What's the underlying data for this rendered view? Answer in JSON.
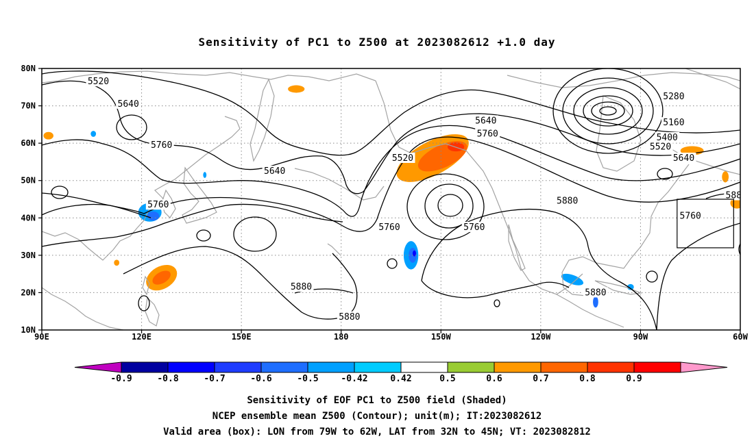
{
  "title": "Sensitivity of PC1 to Z500 at 2023082612 +1.0 day",
  "map": {
    "lon_range": [
      90,
      300
    ],
    "lat_range": [
      10,
      80
    ],
    "x_ticks": [
      "90E",
      "120E",
      "150E",
      "180",
      "150W",
      "120W",
      "90W",
      "60W"
    ],
    "y_ticks": [
      "80N",
      "70N",
      "60N",
      "50N",
      "40N",
      "30N",
      "20N",
      "10N"
    ],
    "grid": "dotted",
    "coastline_color": "#a0a0a0",
    "contour_color": "#000000",
    "valid_area_box": {
      "lon_w": 281,
      "lon_e": 298,
      "lat_s": 32,
      "lat_n": 45
    }
  },
  "contour_labels": [
    {
      "text": "5520",
      "lon": 107,
      "lat": 76.5
    },
    {
      "text": "5640",
      "lon": 116,
      "lat": 70.5
    },
    {
      "text": "5760",
      "lon": 126,
      "lat": 59.5
    },
    {
      "text": "5640",
      "lon": 160,
      "lat": 52.5
    },
    {
      "text": "5760",
      "lon": 125,
      "lat": 43.5
    },
    {
      "text": "5520",
      "lon": 198.5,
      "lat": 56
    },
    {
      "text": "5640",
      "lon": 223.5,
      "lat": 66
    },
    {
      "text": "5760",
      "lon": 224,
      "lat": 62.5
    },
    {
      "text": "5760",
      "lon": 194.5,
      "lat": 37.5
    },
    {
      "text": "5760",
      "lon": 220,
      "lat": 37.5
    },
    {
      "text": "5880",
      "lon": 248,
      "lat": 44.5
    },
    {
      "text": "5880",
      "lon": 168,
      "lat": 21.5
    },
    {
      "text": "5880",
      "lon": 182.5,
      "lat": 13.5
    },
    {
      "text": "5880",
      "lon": 256.5,
      "lat": 20
    },
    {
      "text": "5280",
      "lon": 280,
      "lat": 72.5
    },
    {
      "text": "5160",
      "lon": 280,
      "lat": 65.5
    },
    {
      "text": "5400",
      "lon": 278,
      "lat": 61.5
    },
    {
      "text": "5520",
      "lon": 276,
      "lat": 59
    },
    {
      "text": "5640",
      "lon": 283,
      "lat": 56
    },
    {
      "text": "5760",
      "lon": 285,
      "lat": 40.5
    },
    {
      "text": "588",
      "lon": 298,
      "lat": 46
    }
  ],
  "shaded_patches": [
    {
      "level": "0.5",
      "lon": 207.5,
      "lat": 56,
      "rlon": 12.0,
      "rlat": 4.5,
      "rot": -28
    },
    {
      "level": "0.6",
      "lon": 210.5,
      "lat": 56.5,
      "rlon": 8.0,
      "rlat": 3.0,
      "rot": -25
    },
    {
      "level": "0.7",
      "lon": 214.5,
      "lat": 59,
      "rlon": 2.5,
      "rlat": 1.2,
      "rot": 0
    },
    {
      "level": "0.5",
      "lon": 126,
      "lat": 24,
      "rlon": 5.0,
      "rlat": 3.0,
      "rot": -30
    },
    {
      "level": "0.6",
      "lon": 126,
      "lat": 24,
      "rlon": 3.0,
      "rlat": 1.5,
      "rot": -30
    },
    {
      "level": "0.5",
      "lon": 166.5,
      "lat": 74.5,
      "rlon": 2.5,
      "rlat": 1.0,
      "rot": 0
    },
    {
      "level": "0.5",
      "lon": 92,
      "lat": 62,
      "rlon": 1.5,
      "rlat": 1.0,
      "rot": 0
    },
    {
      "level": "0.5",
      "lon": 285.5,
      "lat": 58,
      "rlon": 3.5,
      "rlat": 1.2,
      "rot": 0
    },
    {
      "level": "0.5",
      "lon": 299,
      "lat": 44,
      "rlon": 2.0,
      "rlat": 1.5,
      "rot": 0
    },
    {
      "level": "0.5",
      "lon": 295.5,
      "lat": 51,
      "rlon": 1.0,
      "rlat": 1.5,
      "rot": 0
    },
    {
      "level": "0.5",
      "lon": 112.5,
      "lat": 28,
      "rlon": 0.8,
      "rlat": 0.8,
      "rot": 0
    },
    {
      "level": "-0.5",
      "lon": 201,
      "lat": 30,
      "rlon": 2.2,
      "rlat": 3.8,
      "rot": 0
    },
    {
      "level": "-0.6",
      "lon": 201.5,
      "lat": 30,
      "rlon": 1.2,
      "rlat": 2.0,
      "rot": 0
    },
    {
      "level": "-0.8",
      "lon": 202,
      "lat": 30.5,
      "rlon": 0.5,
      "rlat": 0.8,
      "rot": 0
    },
    {
      "level": "-0.5",
      "lon": 122.5,
      "lat": 41.5,
      "rlon": 3.5,
      "rlat": 2.5,
      "rot": 0
    },
    {
      "level": "-0.6",
      "lon": 123.5,
      "lat": 40.5,
      "rlon": 1.8,
      "rlat": 1.2,
      "rot": 0
    },
    {
      "level": "-0.5",
      "lon": 249.5,
      "lat": 23.5,
      "rlon": 3.5,
      "rlat": 1.2,
      "rot": 20
    },
    {
      "level": "-0.6",
      "lon": 256.5,
      "lat": 17.5,
      "rlon": 0.8,
      "rlat": 1.5,
      "rot": 0
    },
    {
      "level": "-0.5",
      "lon": 105.5,
      "lat": 62.5,
      "rlon": 0.8,
      "rlat": 0.8,
      "rot": 0
    },
    {
      "level": "-0.5",
      "lon": 139,
      "lat": 51.5,
      "rlon": 0.5,
      "rlat": 0.8,
      "rot": 0
    },
    {
      "level": "-0.5",
      "lon": 267,
      "lat": 21.5,
      "rlon": 1.0,
      "rlat": 0.8,
      "rot": 0
    }
  ],
  "colorbar": {
    "labels": [
      "-0.9",
      "-0.8",
      "-0.7",
      "-0.6",
      "-0.5",
      "-0.42",
      "0.42",
      "0.5",
      "0.6",
      "0.7",
      "0.8",
      "0.9"
    ],
    "below_color": "#c000c0",
    "colors": [
      "#0000a0",
      "#0000ff",
      "#1e3cff",
      "#1e6eff",
      "#00a0ff",
      "#00ccff",
      "#ffffff",
      "#99cc33",
      "#ff9900",
      "#ff6600",
      "#ff3300",
      "#ff0000"
    ],
    "above_color": "#ff99cc"
  },
  "footer": [
    "Sensitivity of EOF PC1 to Z500 field (Shaded)",
    "NCEP ensemble mean Z500 (Contour); unit(m); IT:2023082612",
    "Valid area (box): LON from 79W to 62W, LAT from 32N to 45N; VT: 2023082812"
  ]
}
